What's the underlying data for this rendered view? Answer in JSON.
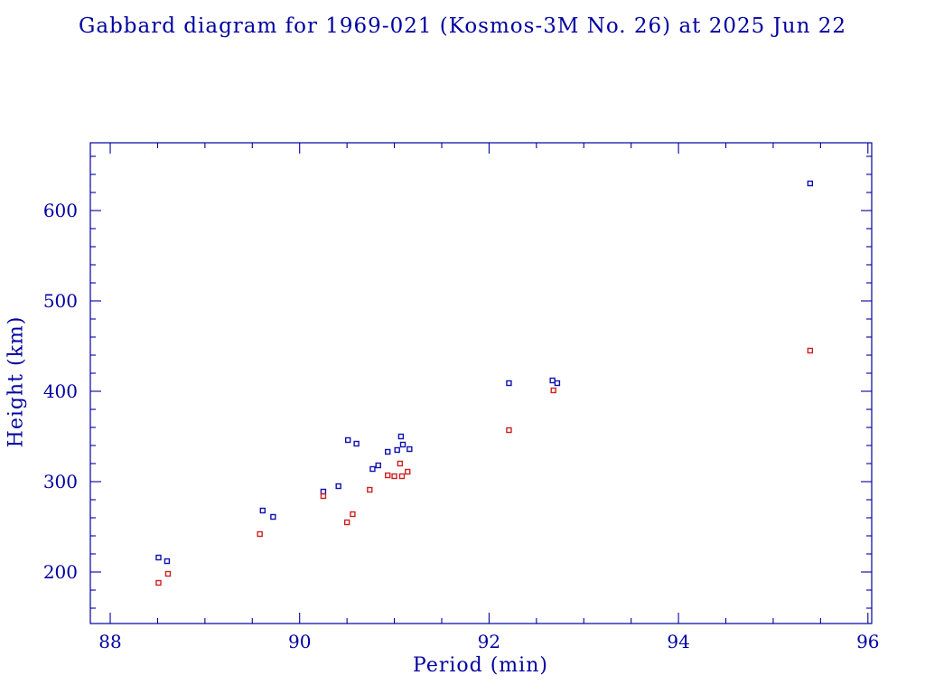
{
  "chart_data": {
    "type": "scatter",
    "title": "Gabbard diagram for 1969-021 (Kosmos-3M No. 26) at 2025 Jun 22",
    "xlabel": "Period (min)",
    "ylabel": "Height (km)",
    "xlim": [
      87.79,
      96.04
    ],
    "ylim": [
      143,
      675
    ],
    "xticks": [
      88,
      90,
      92,
      94,
      96
    ],
    "yticks": [
      200,
      300,
      400,
      500,
      600
    ],
    "x_minor_step": 0.5,
    "y_minor_step": 20,
    "grid": false,
    "legend_position": "none",
    "axis_color": "#0000a0",
    "title_color": "#0000a0",
    "background_color": "#ffffff",
    "marker": "open-square",
    "series": [
      {
        "name": "apogee",
        "color": "#1010b0",
        "points": [
          [
            88.51,
            216
          ],
          [
            88.6,
            212
          ],
          [
            89.61,
            268
          ],
          [
            89.72,
            261
          ],
          [
            90.25,
            289
          ],
          [
            90.41,
            295
          ],
          [
            90.51,
            346
          ],
          [
            90.6,
            342
          ],
          [
            90.77,
            314
          ],
          [
            90.83,
            318
          ],
          [
            90.93,
            333
          ],
          [
            91.03,
            335
          ],
          [
            91.07,
            350
          ],
          [
            91.09,
            341
          ],
          [
            91.16,
            336
          ],
          [
            92.21,
            409
          ],
          [
            92.67,
            412
          ],
          [
            92.72,
            409
          ],
          [
            95.39,
            630
          ]
        ]
      },
      {
        "name": "perigee",
        "color": "#cc2020",
        "points": [
          [
            88.51,
            188
          ],
          [
            88.61,
            198
          ],
          [
            89.58,
            242
          ],
          [
            90.25,
            284
          ],
          [
            90.5,
            255
          ],
          [
            90.56,
            264
          ],
          [
            90.74,
            291
          ],
          [
            90.93,
            307
          ],
          [
            91.0,
            306
          ],
          [
            91.06,
            320
          ],
          [
            91.08,
            306
          ],
          [
            91.14,
            311
          ],
          [
            92.21,
            357
          ],
          [
            92.68,
            401
          ],
          [
            95.39,
            445
          ]
        ]
      }
    ]
  }
}
